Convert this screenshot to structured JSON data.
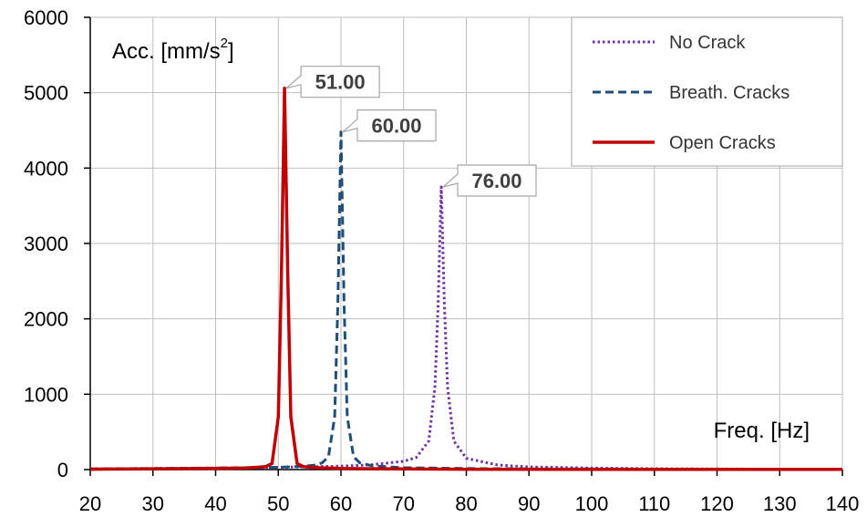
{
  "chart_data": {
    "type": "line",
    "xlabel": "Freq. [Hz]",
    "ylabel_main": "Acc. [mm/s",
    "ylabel_sup": "2",
    "ylabel_close": "]",
    "xlim": [
      20,
      140
    ],
    "ylim": [
      0,
      6000
    ],
    "xticks": [
      20,
      30,
      40,
      50,
      60,
      70,
      80,
      90,
      100,
      110,
      120,
      130,
      140
    ],
    "yticks": [
      0,
      1000,
      2000,
      3000,
      4000,
      5000,
      6000
    ],
    "grid": true,
    "legend_position": "top-right",
    "series": [
      {
        "name": "No Crack",
        "color": "#7030a0",
        "style": "dotted",
        "x": [
          20,
          30,
          40,
          50,
          60,
          65,
          70,
          72,
          74,
          75,
          75.5,
          76,
          76.5,
          77,
          78,
          80,
          85,
          90,
          100,
          110,
          120,
          130,
          140
        ],
        "y": [
          10,
          15,
          20,
          30,
          45,
          65,
          110,
          160,
          380,
          1100,
          2200,
          3750,
          2200,
          1100,
          380,
          150,
          60,
          35,
          20,
          12,
          8,
          5,
          3
        ]
      },
      {
        "name": "Breath. Cracks",
        "color": "#1f4e79",
        "style": "dashed",
        "x": [
          20,
          30,
          40,
          50,
          54,
          56,
          57,
          58,
          59,
          59.5,
          60,
          60.5,
          61,
          62,
          63,
          65,
          70,
          80,
          90,
          100,
          110,
          120,
          130,
          140
        ],
        "y": [
          10,
          15,
          20,
          30,
          45,
          60,
          90,
          170,
          700,
          2200,
          4480,
          2200,
          700,
          170,
          90,
          50,
          25,
          15,
          10,
          8,
          6,
          5,
          4,
          3
        ]
      },
      {
        "name": "Open Cracks",
        "color": "#c00000",
        "style": "solid",
        "x": [
          20,
          30,
          40,
          45,
          48,
          49,
          50,
          50.5,
          51,
          51.5,
          52,
          53,
          54,
          56,
          60,
          70,
          80,
          100,
          120,
          140
        ],
        "y": [
          5,
          10,
          15,
          20,
          40,
          80,
          700,
          2600,
          5060,
          2600,
          700,
          80,
          40,
          25,
          15,
          8,
          5,
          4,
          3,
          2
        ]
      }
    ],
    "annotations": [
      {
        "text": "51.00",
        "x": 51,
        "y": 5060,
        "series": "Open Cracks"
      },
      {
        "text": "60.00",
        "x": 60,
        "y": 4480,
        "series": "Breath. Cracks"
      },
      {
        "text": "76.00",
        "x": 76,
        "y": 3750,
        "series": "No Crack"
      }
    ]
  }
}
